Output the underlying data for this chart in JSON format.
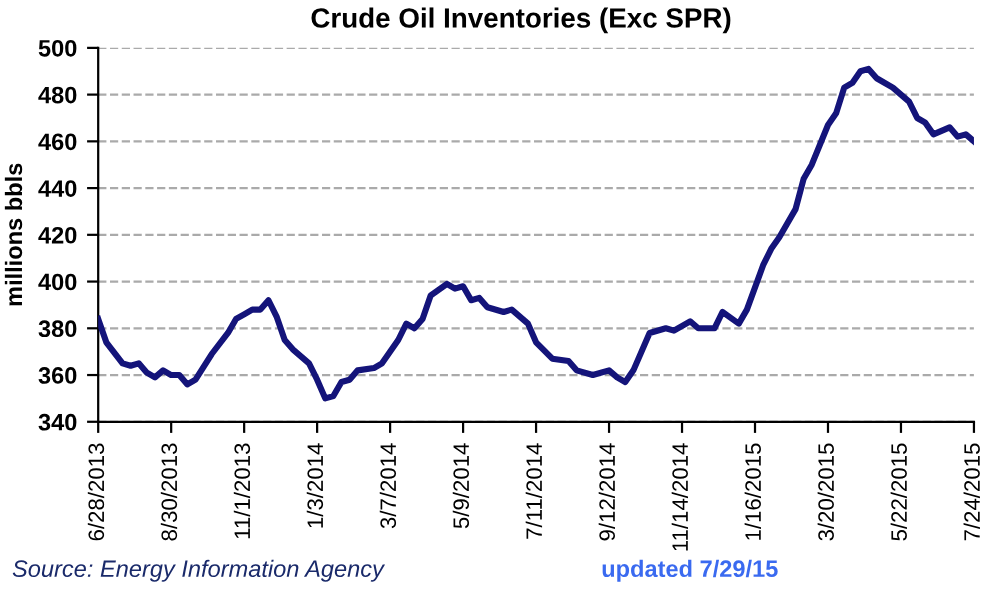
{
  "chart_data": {
    "type": "line",
    "title": "Crude Oil Inventories (Exc SPR)",
    "ylabel": "millions bbls",
    "x": [
      "2013-06-28",
      "2013-07-05",
      "2013-07-19",
      "2013-07-26",
      "2013-08-02",
      "2013-08-09",
      "2013-08-16",
      "2013-08-23",
      "2013-08-30",
      "2013-09-06",
      "2013-09-13",
      "2013-09-20",
      "2013-10-04",
      "2013-10-18",
      "2013-10-25",
      "2013-11-01",
      "2013-11-08",
      "2013-11-15",
      "2013-11-22",
      "2013-11-29",
      "2013-12-06",
      "2013-12-13",
      "2013-12-27",
      "2014-01-03",
      "2014-01-10",
      "2014-01-17",
      "2014-01-24",
      "2014-01-31",
      "2014-02-07",
      "2014-02-21",
      "2014-02-28",
      "2014-03-14",
      "2014-03-21",
      "2014-03-28",
      "2014-04-04",
      "2014-04-11",
      "2014-04-25",
      "2014-05-02",
      "2014-05-09",
      "2014-05-16",
      "2014-05-23",
      "2014-05-30",
      "2014-06-13",
      "2014-06-20",
      "2014-07-04",
      "2014-07-11",
      "2014-07-25",
      "2014-08-08",
      "2014-08-15",
      "2014-08-29",
      "2014-09-12",
      "2014-09-19",
      "2014-09-26",
      "2014-10-03",
      "2014-10-17",
      "2014-10-31",
      "2014-11-07",
      "2014-11-21",
      "2014-11-28",
      "2014-12-12",
      "2014-12-19",
      "2015-01-02",
      "2015-01-09",
      "2015-01-23",
      "2015-01-30",
      "2015-02-06",
      "2015-02-20",
      "2015-02-27",
      "2015-03-06",
      "2015-03-20",
      "2015-03-27",
      "2015-04-03",
      "2015-04-10",
      "2015-04-17",
      "2015-04-24",
      "2015-05-01",
      "2015-05-15",
      "2015-05-29",
      "2015-06-05",
      "2015-06-12",
      "2015-06-19",
      "2015-07-03",
      "2015-07-10",
      "2015-07-17",
      "2015-07-24"
    ],
    "series": [
      {
        "color": "#14147a",
        "values": [
          384,
          374,
          365,
          364,
          365,
          361,
          359,
          362,
          360,
          360,
          356,
          358,
          369,
          378,
          384,
          386,
          388,
          388,
          392,
          385,
          375,
          371,
          365,
          358,
          350,
          351,
          357,
          358,
          362,
          363,
          365,
          375,
          382,
          380,
          384,
          394,
          399,
          397,
          398,
          392,
          393,
          389,
          387,
          388,
          382,
          374,
          367,
          366,
          362,
          360,
          362,
          359,
          357,
          362,
          378,
          380,
          379,
          383,
          380,
          380,
          387,
          382,
          388,
          407,
          414,
          419,
          431,
          444,
          450,
          467,
          472,
          483,
          485,
          490,
          491,
          487,
          483,
          477,
          470,
          468,
          463,
          466,
          462,
          463,
          460
        ]
      }
    ],
    "xlim": [
      "2013-06-28",
      "2015-07-24"
    ],
    "xticks": [
      {
        "value": "2013-06-28",
        "label": "6/28/2013"
      },
      {
        "value": "2013-08-30",
        "label": "8/30/2013"
      },
      {
        "value": "2013-11-01",
        "label": "11/1/2013"
      },
      {
        "value": "2014-01-03",
        "label": "1/3/2014"
      },
      {
        "value": "2014-03-07",
        "label": "3/7/2014"
      },
      {
        "value": "2014-05-09",
        "label": "5/9/2014"
      },
      {
        "value": "2014-07-11",
        "label": "7/11/2014"
      },
      {
        "value": "2014-09-12",
        "label": "9/12/2014"
      },
      {
        "value": "2014-11-14",
        "label": "11/14/2014"
      },
      {
        "value": "2015-01-16",
        "label": "1/16/2015"
      },
      {
        "value": "2015-03-20",
        "label": "3/20/2015"
      },
      {
        "value": "2015-05-22",
        "label": "5/22/2015"
      },
      {
        "value": "2015-07-24",
        "label": "7/24/2015"
      }
    ],
    "ylim": [
      340,
      500
    ],
    "yticks": [
      340,
      360,
      380,
      400,
      420,
      440,
      460,
      480,
      500
    ],
    "grid": "y",
    "line_style": "solid",
    "marker": "none",
    "annotations": [
      "Source: Energy Information Agency",
      "updated 7/29/15"
    ]
  }
}
